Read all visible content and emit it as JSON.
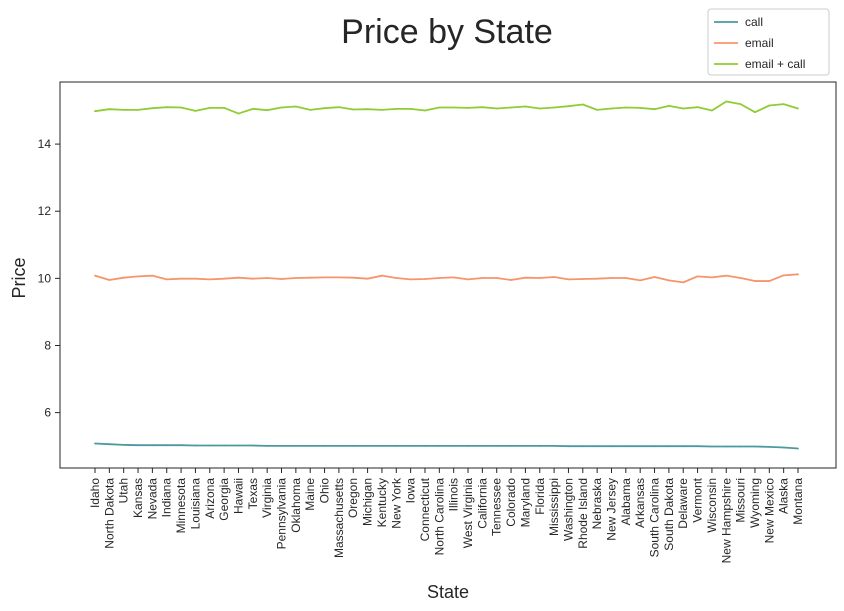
{
  "chart_data": {
    "type": "line",
    "title": "Price by State",
    "xlabel": "State",
    "ylabel": "Price",
    "ylim": [
      4.35,
      15.85
    ],
    "yticks": [
      6,
      8,
      10,
      12,
      14
    ],
    "grid": false,
    "legend_position": "top-right",
    "categories": [
      "Idaho",
      "North Dakota",
      "Utah",
      "Kansas",
      "Nevada",
      "Indiana",
      "Minnesota",
      "Louisiana",
      "Arizona",
      "Georgia",
      "Hawaii",
      "Texas",
      "Virginia",
      "Pennsylvania",
      "Oklahoma",
      "Maine",
      "Ohio",
      "Massachusetts",
      "Oregon",
      "Michigan",
      "Kentucky",
      "New York",
      "Iowa",
      "Connecticut",
      "North Carolina",
      "Illinois",
      "West Virginia",
      "California",
      "Tennessee",
      "Colorado",
      "Maryland",
      "Florida",
      "Mississippi",
      "Washington",
      "Rhode Island",
      "Nebraska",
      "New Jersey",
      "Alabama",
      "Arkansas",
      "South Carolina",
      "South Dakota",
      "Delaware",
      "Vermont",
      "Wisconsin",
      "New Hampshire",
      "Missouri",
      "Wyoming",
      "New Mexico",
      "Alaska",
      "Montana"
    ],
    "series": [
      {
        "name": "call",
        "color": "#4a9aa0",
        "values": [
          5.08,
          5.06,
          5.04,
          5.03,
          5.03,
          5.03,
          5.03,
          5.02,
          5.02,
          5.02,
          5.02,
          5.02,
          5.01,
          5.01,
          5.01,
          5.01,
          5.01,
          5.01,
          5.01,
          5.01,
          5.01,
          5.01,
          5.01,
          5.01,
          5.01,
          5.01,
          5.01,
          5.01,
          5.01,
          5.01,
          5.01,
          5.01,
          5.01,
          5.0,
          5.0,
          5.0,
          5.0,
          5.0,
          5.0,
          5.0,
          5.0,
          5.0,
          5.0,
          4.99,
          4.99,
          4.99,
          4.99,
          4.98,
          4.96,
          4.93
        ]
      },
      {
        "name": "email",
        "color": "#f7946b",
        "values": [
          10.08,
          9.95,
          10.02,
          10.06,
          10.08,
          9.97,
          9.99,
          9.99,
          9.97,
          9.99,
          10.02,
          9.99,
          10.01,
          9.98,
          10.01,
          10.02,
          10.03,
          10.03,
          10.02,
          9.99,
          10.08,
          10.01,
          9.97,
          9.98,
          10.01,
          10.03,
          9.97,
          10.01,
          10.01,
          9.95,
          10.02,
          10.01,
          10.04,
          9.97,
          9.98,
          9.99,
          10.01,
          10.01,
          9.94,
          10.04,
          9.94,
          9.88,
          10.06,
          10.03,
          10.08,
          10.01,
          9.92,
          9.92,
          10.09,
          10.12
        ]
      },
      {
        "name": "email + call",
        "color": "#8fcc35",
        "values": [
          14.98,
          15.04,
          15.02,
          15.02,
          15.07,
          15.1,
          15.09,
          14.99,
          15.08,
          15.08,
          14.91,
          15.05,
          15.01,
          15.09,
          15.12,
          15.02,
          15.07,
          15.1,
          15.03,
          15.04,
          15.02,
          15.05,
          15.05,
          15.0,
          15.09,
          15.09,
          15.08,
          15.1,
          15.06,
          15.09,
          15.12,
          15.06,
          15.09,
          15.13,
          15.18,
          15.02,
          15.06,
          15.09,
          15.08,
          15.04,
          15.14,
          15.06,
          15.1,
          15.0,
          15.27,
          15.19,
          14.95,
          15.15,
          15.19,
          15.06
        ]
      }
    ]
  }
}
